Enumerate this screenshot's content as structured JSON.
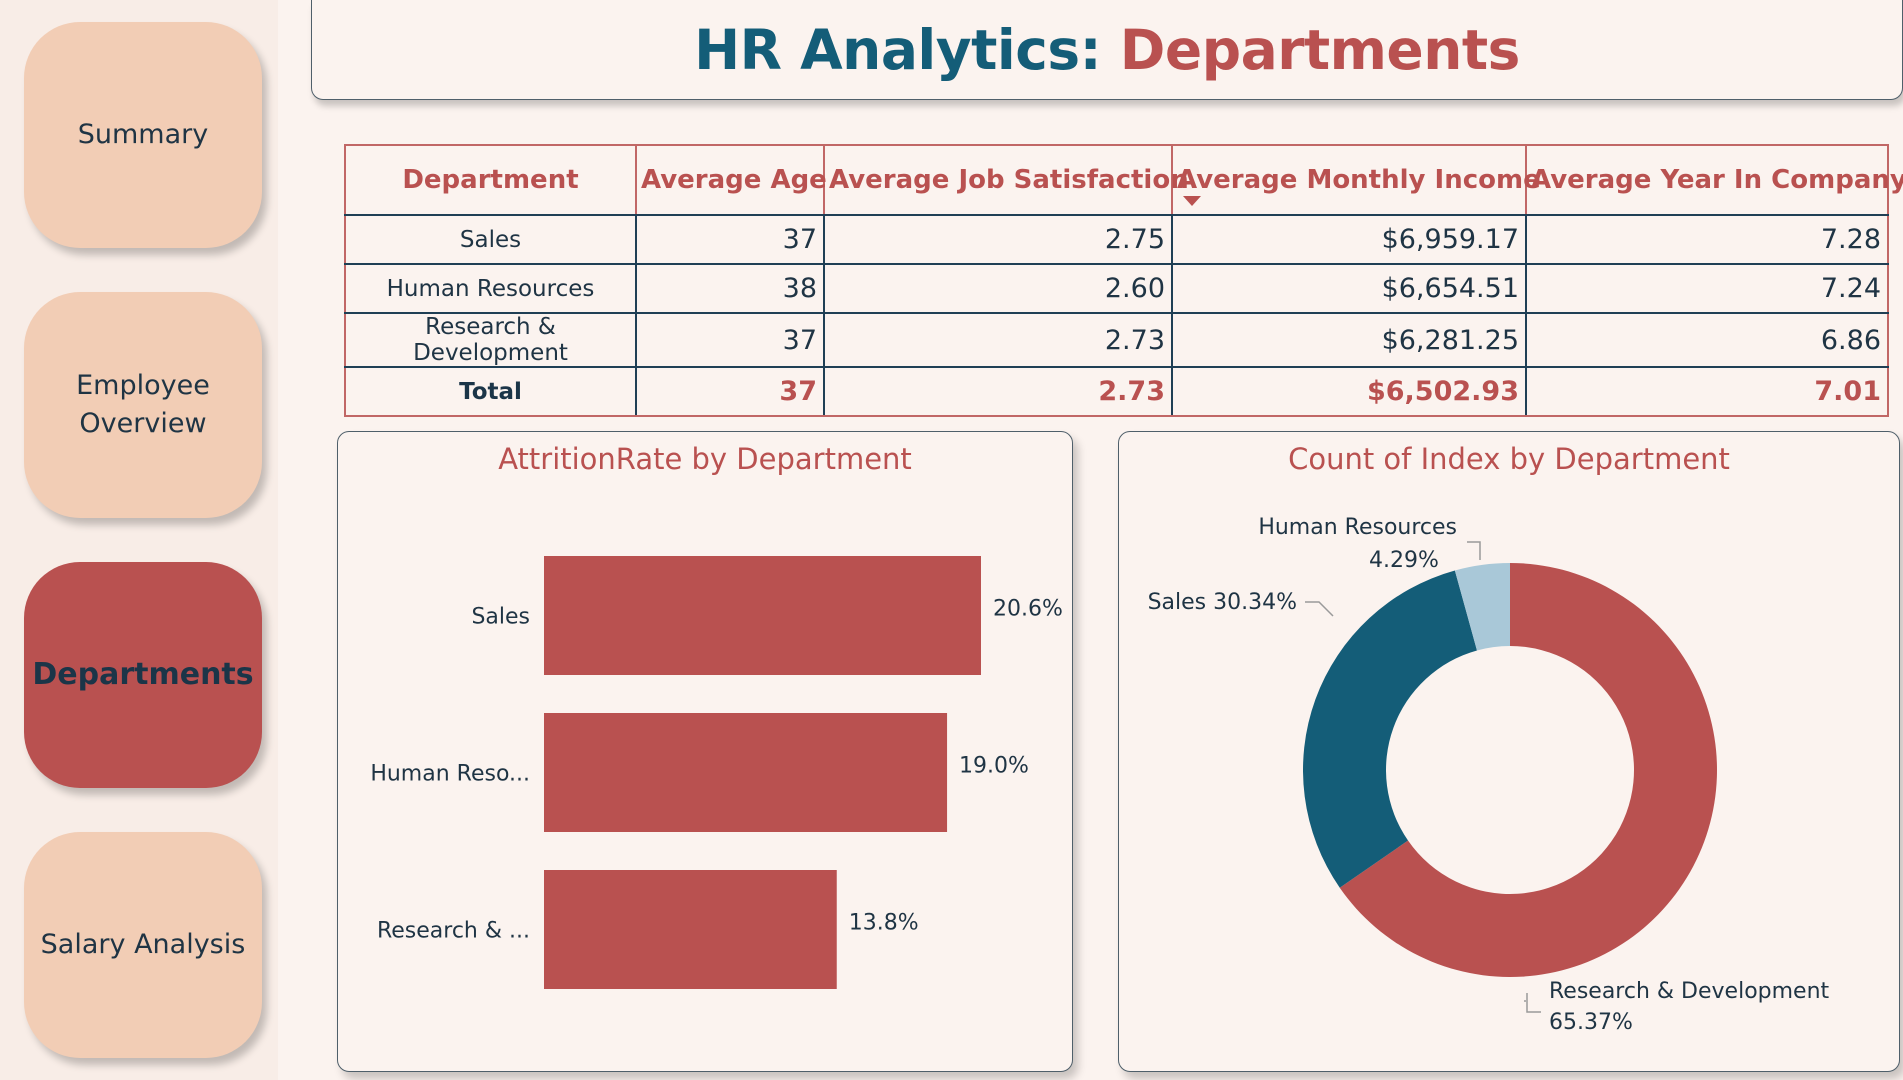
{
  "nav": {
    "items": [
      {
        "label": "Summary",
        "active": false
      },
      {
        "label": "Employee\nOverview",
        "active": false
      },
      {
        "label": "Departments",
        "active": true
      },
      {
        "label": "Salary Analysis",
        "active": false
      }
    ]
  },
  "header": {
    "title_prefix": "HR Analytics: ",
    "title_page": "Departments"
  },
  "table": {
    "columns": [
      "Department",
      "Average Age",
      "Average Job Satisfaction",
      "Average Monthly Income",
      "Average Year In Company"
    ],
    "sorted_column": "Average Monthly Income",
    "rows": [
      [
        "Sales",
        "37",
        "2.75",
        "$6,959.17",
        "7.28"
      ],
      [
        "Human Resources",
        "38",
        "2.60",
        "$6,654.51",
        "7.24"
      ],
      [
        "Research & Development",
        "37",
        "2.73",
        "$6,281.25",
        "6.86"
      ]
    ],
    "total": [
      "Total",
      "37",
      "2.73",
      "$6,502.93",
      "7.01"
    ]
  },
  "colors": {
    "accent_red": "#b95150",
    "teal": "#145d78",
    "light_blue": "#a9c8d8",
    "nav_bg": "#f2cdb5"
  },
  "chart_data": [
    {
      "type": "bar",
      "orientation": "horizontal",
      "title": "AttritionRate by Department",
      "categories": [
        "Sales",
        "Human Reso...",
        "Research & ..."
      ],
      "values": [
        20.6,
        19.0,
        13.8
      ],
      "data_labels": [
        "20.6%",
        "19.0%",
        "13.8%"
      ],
      "unit": "%",
      "xlim": [
        0,
        22
      ],
      "color": "#b95150",
      "grid": false,
      "legend": "none"
    },
    {
      "type": "pie",
      "variant": "donut",
      "title": "Count of Index by Department",
      "categories": [
        "Research & Development",
        "Sales",
        "Human Resources"
      ],
      "values": [
        65.37,
        30.34,
        4.29
      ],
      "labels": [
        "Research & Development",
        "Sales",
        "Human Resources"
      ],
      "data_labels": [
        "65.37%",
        "30.34%",
        "4.29%"
      ],
      "colors": [
        "#b95150",
        "#145d78",
        "#a9c8d8"
      ],
      "legend": "none"
    }
  ]
}
